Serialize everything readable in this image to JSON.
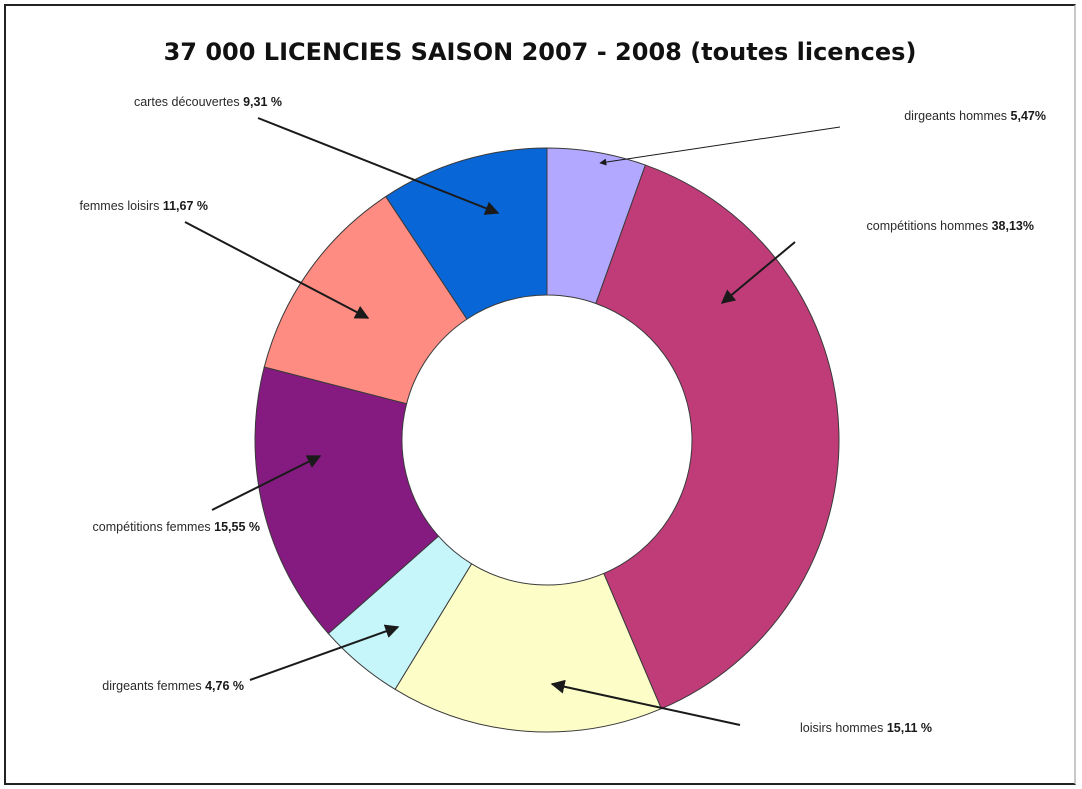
{
  "chart_data": {
    "type": "pie",
    "donut": true,
    "title": "37 000 LICENCIES SAISON 2007 - 2008 (toutes licences)",
    "slices": [
      {
        "label": "dirgeants hommes",
        "value": 5.47,
        "display": "5,47%",
        "color": "#b3a8ff"
      },
      {
        "label": "compétitions hommes",
        "value": 38.13,
        "display": "38,13%",
        "color": "#c03c78"
      },
      {
        "label": "loisirs hommes",
        "value": 15.11,
        "display": "15,11 %",
        "color": "#fdfdc8"
      },
      {
        "label": "dirgeants femmes",
        "value": 4.76,
        "display": "4,76 %",
        "color": "#c6f5fa"
      },
      {
        "label": "compétitions femmes",
        "value": 15.55,
        "display": "15,55 %",
        "color": "#851a80"
      },
      {
        "label": "femmes loisirs",
        "value": 11.67,
        "display": "11,67 %",
        "color": "#ff8c82"
      },
      {
        "label": "cartes découvertes",
        "value": 9.31,
        "display": "9,31 %",
        "color": "#0966d6"
      }
    ],
    "legend": "callout labels with arrows"
  }
}
